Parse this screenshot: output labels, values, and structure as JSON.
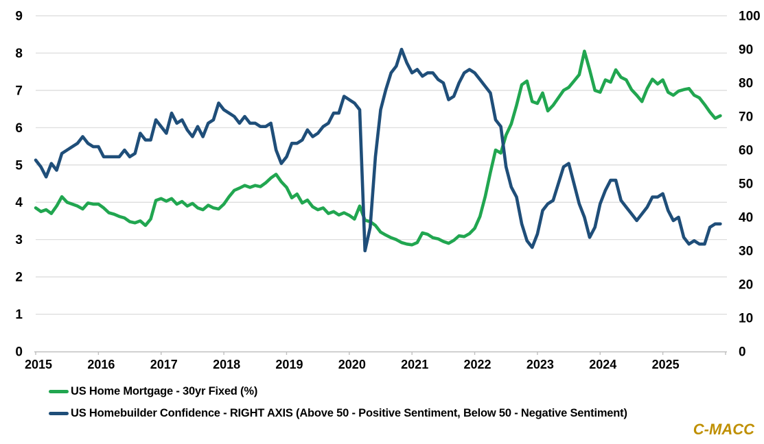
{
  "chart_data": {
    "type": "line",
    "title": "",
    "x": {
      "unit": "month",
      "start": "2015-01",
      "end": "2025-12",
      "tick_labels": [
        "2015",
        "2016",
        "2017",
        "2018",
        "2019",
        "2020",
        "2021",
        "2022",
        "2023",
        "2024",
        "2025"
      ]
    },
    "left_axis": {
      "min": 0,
      "max": 9,
      "tick_labels": [
        "0",
        "1",
        "2",
        "3",
        "4",
        "5",
        "6",
        "7",
        "8",
        "9"
      ]
    },
    "right_axis": {
      "min": 0,
      "max": 100,
      "tick_labels": [
        "0",
        "10",
        "20",
        "30",
        "40",
        "50",
        "60",
        "70",
        "80",
        "90",
        "100"
      ]
    },
    "grid": "horizontal",
    "legend_position": "bottom-left",
    "series": [
      {
        "name": "US Home Mortgage - 30yr Fixed (%)",
        "axis": "left",
        "color": "#21A650",
        "values": [
          3.85,
          3.75,
          3.8,
          3.7,
          3.9,
          4.15,
          4.0,
          3.95,
          3.9,
          3.82,
          3.98,
          3.95,
          3.95,
          3.85,
          3.72,
          3.68,
          3.62,
          3.58,
          3.48,
          3.45,
          3.5,
          3.38,
          3.55,
          4.05,
          4.1,
          4.03,
          4.1,
          3.95,
          4.02,
          3.9,
          3.97,
          3.85,
          3.8,
          3.92,
          3.85,
          3.82,
          3.95,
          4.15,
          4.32,
          4.38,
          4.45,
          4.4,
          4.45,
          4.42,
          4.52,
          4.65,
          4.75,
          4.55,
          4.4,
          4.12,
          4.22,
          3.98,
          4.06,
          3.88,
          3.8,
          3.85,
          3.7,
          3.75,
          3.66,
          3.72,
          3.65,
          3.55,
          3.9,
          3.52,
          3.48,
          3.38,
          3.2,
          3.12,
          3.05,
          3.0,
          2.92,
          2.88,
          2.86,
          2.92,
          3.18,
          3.14,
          3.05,
          3.02,
          2.95,
          2.9,
          2.98,
          3.1,
          3.08,
          3.16,
          3.3,
          3.62,
          4.15,
          4.8,
          5.4,
          5.32,
          5.8,
          6.1,
          6.6,
          7.15,
          7.25,
          6.7,
          6.65,
          6.93,
          6.45,
          6.6,
          6.8,
          7.0,
          7.08,
          7.25,
          7.42,
          8.05,
          7.55,
          7.0,
          6.95,
          7.28,
          7.22,
          7.55,
          7.35,
          7.28,
          7.02,
          6.87,
          6.7,
          7.05,
          7.3,
          7.17,
          7.28,
          6.95,
          6.87,
          6.98,
          7.02,
          7.05,
          6.87,
          6.8,
          6.62,
          6.42,
          6.25,
          6.32
        ]
      },
      {
        "name": "US Homebuilder Confidence - RIGHT AXIS (Above 50 - Positive Sentiment, Below 50 - Negative Sentiment)",
        "axis": "right",
        "color": "#1F4E79",
        "values": [
          57,
          55,
          52,
          56,
          54,
          59,
          60,
          61,
          62,
          64,
          62,
          61,
          61,
          58,
          58,
          58,
          58,
          60,
          58,
          59,
          65,
          63,
          63,
          69,
          67,
          65,
          71,
          68,
          69,
          66,
          64,
          67,
          64,
          68,
          69,
          74,
          72,
          71,
          70,
          68,
          70,
          68,
          68,
          67,
          67,
          68,
          60,
          56,
          58,
          62,
          62,
          63,
          66,
          64,
          65,
          67,
          68,
          71,
          71,
          76,
          75,
          74,
          72,
          30,
          37,
          58,
          72,
          78,
          83,
          85,
          90,
          86,
          83,
          84,
          82,
          83,
          83,
          81,
          80,
          75,
          76,
          80,
          83,
          84,
          83,
          81,
          79,
          77,
          69,
          67,
          55,
          49,
          46,
          38,
          33,
          31,
          35,
          42,
          44,
          45,
          50,
          55,
          56,
          50,
          44,
          40,
          34,
          37,
          44,
          48,
          51,
          51,
          45,
          43,
          41,
          39,
          41,
          43,
          46,
          46,
          47,
          42,
          39,
          40,
          34,
          32,
          33,
          32,
          32,
          37,
          38,
          38
        ]
      }
    ],
    "style": {
      "gridline_color": "#D9D9D9",
      "axis_line_color": "#BFBFBF",
      "line_width": 4.6
    }
  },
  "branding": {
    "logo_text": "C-MACC",
    "color": "#BF8F00"
  }
}
